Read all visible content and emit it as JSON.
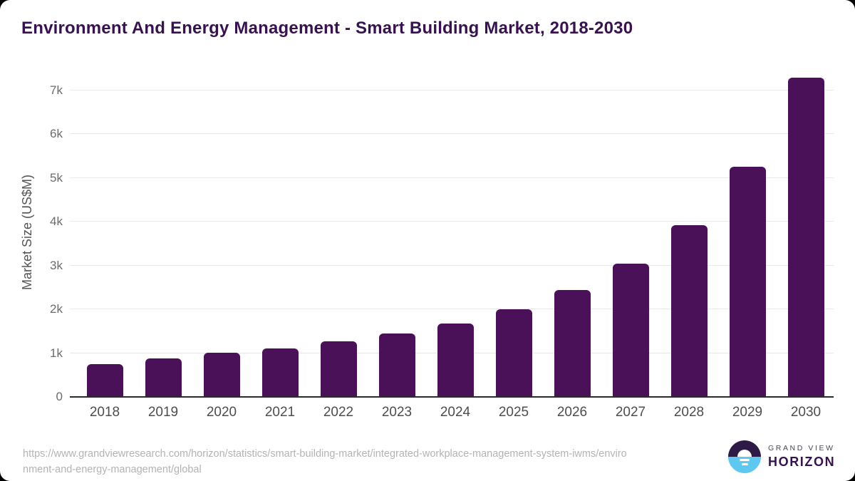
{
  "chart_data": {
    "type": "bar",
    "title": "Environment And Energy Management - Smart Building Market, 2018-2030",
    "categories": [
      "2018",
      "2019",
      "2020",
      "2021",
      "2022",
      "2023",
      "2024",
      "2025",
      "2026",
      "2027",
      "2028",
      "2029",
      "2030"
    ],
    "values": [
      725,
      870,
      990,
      1095,
      1245,
      1425,
      1660,
      1980,
      2420,
      3025,
      3905,
      5240,
      7265
    ],
    "xlabel": "",
    "ylabel": "Market Size (US$M)",
    "ylim": [
      0,
      7400
    ],
    "y_ticks": [
      "0",
      "1k",
      "2k",
      "3k",
      "4k",
      "5k",
      "6k",
      "7k"
    ],
    "y_tick_unit_value": 1000,
    "grid": true,
    "legend": "none",
    "bar_color": "#4a1158"
  },
  "footer": {
    "source_line1": "https://www.grandviewresearch.com/horizon/statistics/smart-building-market/integrated-workplace-management-system-iwms/enviro",
    "source_line2": "nment-and-energy-management/global",
    "logo": {
      "brand_top": "GRAND VIEW",
      "brand_bottom": "HORIZON"
    }
  },
  "colors": {
    "bar": "#4a1158",
    "title_text": "#38124f",
    "axis_label_text": "#555555",
    "tick_text": "#6b6b6b",
    "x_tick_text": "#4d4d4d",
    "gridline": "#e8e8e8",
    "axis_line": "#2b2b2b",
    "source_text": "#b3b3b3",
    "logo_purple": "#2e1a47",
    "logo_blue": "#5ec8f0",
    "background": "#ffffff"
  }
}
